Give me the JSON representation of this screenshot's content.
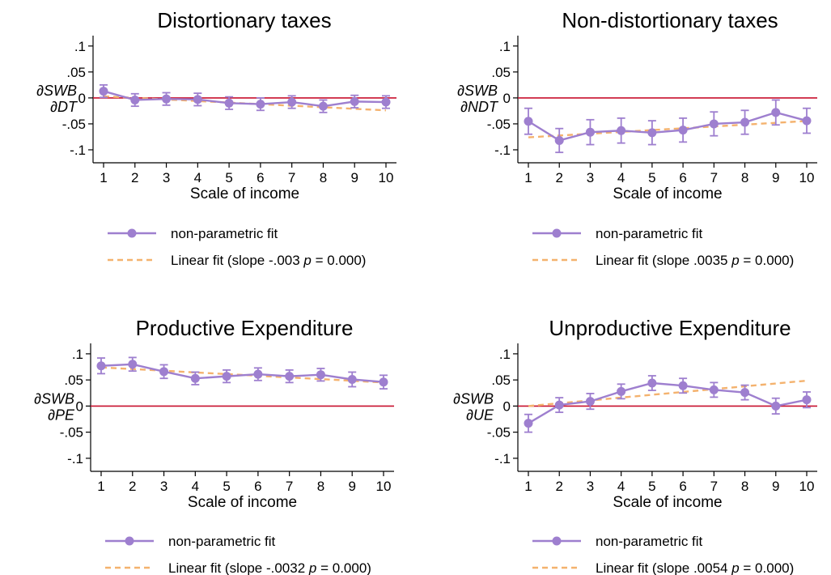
{
  "chart_data": [
    {
      "type": "line",
      "title": "Distortionary taxes",
      "xlabel": "Scale of income",
      "ylabel": {
        "numerator": "∂SWB",
        "denominator": "∂DT"
      },
      "x": [
        1,
        2,
        3,
        4,
        5,
        6,
        7,
        8,
        9,
        10
      ],
      "xticks": [
        "1",
        "2",
        "3",
        "4",
        "5",
        "6",
        "7",
        "8",
        "9",
        "10"
      ],
      "ylim": [
        -0.125,
        0.12
      ],
      "yticks": [
        0.1,
        0.05,
        0,
        -0.05,
        -0.1
      ],
      "ytick_labels": [
        ".1",
        ".05",
        "0",
        "-.05",
        "-.1"
      ],
      "reference_line": 0,
      "grid": false,
      "series": [
        {
          "name": "non-parametric fit",
          "style": "line-marker-errorbar",
          "color": "#9e7fcf",
          "values": [
            0.013,
            -0.004,
            -0.002,
            -0.003,
            -0.01,
            -0.012,
            -0.008,
            -0.016,
            -0.007,
            -0.008
          ],
          "ci_low": [
            0.001,
            -0.016,
            -0.014,
            -0.015,
            -0.022,
            -0.024,
            -0.02,
            -0.028,
            -0.019,
            -0.02
          ],
          "ci_high": [
            0.025,
            0.008,
            0.01,
            0.009,
            0.002,
            0.0,
            0.004,
            -0.004,
            0.005,
            0.004
          ]
        },
        {
          "name": "Linear fit (slope -.003",
          "style": "dashed",
          "color": "#f4b26e",
          "values": [
            0.003,
            0.0,
            -0.003,
            -0.006,
            -0.009,
            -0.012,
            -0.015,
            -0.018,
            -0.021,
            -0.024
          ]
        }
      ],
      "legend": {
        "placement": "bottom",
        "entries": [
          "non-parametric fit",
          "Linear fit (slope -.003"
        ],
        "p_label": "p",
        "p_value": " = 0.000)"
      }
    },
    {
      "type": "line",
      "title": "Non-distortionary taxes",
      "xlabel": "Scale of income",
      "ylabel": {
        "numerator": "∂SWB",
        "denominator": "∂NDT"
      },
      "x": [
        1,
        2,
        3,
        4,
        5,
        6,
        7,
        8,
        9,
        10
      ],
      "xticks": [
        "1",
        "2",
        "3",
        "4",
        "5",
        "6",
        "7",
        "8",
        "9",
        "10"
      ],
      "ylim": [
        -0.125,
        0.12
      ],
      "yticks": [
        0.1,
        0.05,
        0,
        -0.05,
        -0.1
      ],
      "ytick_labels": [
        ".1",
        ".05",
        "0",
        "-.05",
        "-.1"
      ],
      "reference_line": 0,
      "grid": false,
      "series": [
        {
          "name": "non-parametric fit",
          "style": "line-marker-errorbar",
          "color": "#9e7fcf",
          "values": [
            -0.045,
            -0.082,
            -0.066,
            -0.063,
            -0.067,
            -0.062,
            -0.05,
            -0.047,
            -0.028,
            -0.044
          ],
          "ci_low": [
            -0.07,
            -0.105,
            -0.09,
            -0.087,
            -0.09,
            -0.085,
            -0.073,
            -0.07,
            -0.052,
            -0.068
          ],
          "ci_high": [
            -0.02,
            -0.059,
            -0.042,
            -0.039,
            -0.044,
            -0.039,
            -0.027,
            -0.024,
            -0.004,
            -0.02
          ]
        },
        {
          "name": "Linear fit (slope .0035",
          "style": "dashed",
          "color": "#f4b26e",
          "values": [
            -0.076,
            -0.0725,
            -0.069,
            -0.0655,
            -0.062,
            -0.0585,
            -0.055,
            -0.0515,
            -0.048,
            -0.0445
          ]
        }
      ],
      "legend": {
        "placement": "bottom",
        "entries": [
          "non-parametric fit",
          "Linear fit (slope .0035"
        ],
        "p_label": "p",
        "p_value": " = 0.000)"
      }
    },
    {
      "type": "line",
      "title": "Productive Expenditure",
      "xlabel": "Scale of income",
      "ylabel": {
        "numerator": "∂SWB",
        "denominator": "∂PE"
      },
      "x": [
        1,
        2,
        3,
        4,
        5,
        6,
        7,
        8,
        9,
        10
      ],
      "xticks": [
        "1",
        "2",
        "3",
        "4",
        "5",
        "6",
        "7",
        "8",
        "9",
        "10"
      ],
      "ylim": [
        -0.125,
        0.12
      ],
      "yticks": [
        0.1,
        0.05,
        0,
        -0.05,
        -0.1
      ],
      "ytick_labels": [
        ".1",
        ".05",
        "0",
        "-.05",
        "-.1"
      ],
      "reference_line": 0,
      "grid": false,
      "series": [
        {
          "name": "non-parametric fit",
          "style": "line-marker-errorbar",
          "color": "#9e7fcf",
          "values": [
            0.077,
            0.08,
            0.066,
            0.053,
            0.057,
            0.061,
            0.057,
            0.06,
            0.051,
            0.046
          ],
          "ci_low": [
            0.062,
            0.067,
            0.053,
            0.041,
            0.045,
            0.049,
            0.045,
            0.048,
            0.037,
            0.033
          ],
          "ci_high": [
            0.092,
            0.093,
            0.079,
            0.065,
            0.069,
            0.073,
            0.069,
            0.072,
            0.065,
            0.059
          ]
        },
        {
          "name": "Linear fit (slope -.0032",
          "style": "dashed",
          "color": "#f4b26e",
          "values": [
            0.074,
            0.0708,
            0.0676,
            0.0644,
            0.0612,
            0.058,
            0.0548,
            0.0516,
            0.0484,
            0.0452
          ]
        }
      ],
      "legend": {
        "placement": "bottom",
        "entries": [
          "non-parametric fit",
          "Linear fit (slope -.0032"
        ],
        "p_label": "p",
        "p_value": " = 0.000)"
      }
    },
    {
      "type": "line",
      "title": "Unproductive Expenditure",
      "xlabel": "Scale of income",
      "ylabel": {
        "numerator": "∂SWB",
        "denominator": "∂UE"
      },
      "x": [
        1,
        2,
        3,
        4,
        5,
        6,
        7,
        8,
        9,
        10
      ],
      "xticks": [
        "1",
        "2",
        "3",
        "4",
        "5",
        "6",
        "7",
        "8",
        "9",
        "10"
      ],
      "ylim": [
        -0.125,
        0.12
      ],
      "yticks": [
        0.1,
        0.05,
        0,
        -0.05,
        -0.1
      ],
      "ytick_labels": [
        ".1",
        ".05",
        "0",
        "-.05",
        "-.1"
      ],
      "reference_line": 0,
      "grid": false,
      "series": [
        {
          "name": "non-parametric fit",
          "style": "line-marker-errorbar",
          "color": "#9e7fcf",
          "values": [
            -0.033,
            0.002,
            0.009,
            0.028,
            0.044,
            0.039,
            0.031,
            0.026,
            0.0,
            0.012
          ],
          "ci_low": [
            -0.05,
            -0.012,
            -0.006,
            0.014,
            0.03,
            0.025,
            0.017,
            0.012,
            -0.015,
            -0.003
          ],
          "ci_high": [
            -0.016,
            0.016,
            0.024,
            0.042,
            0.058,
            0.053,
            0.045,
            0.04,
            0.015,
            0.027
          ]
        },
        {
          "name": "Linear fit (slope .0054",
          "style": "dashed",
          "color": "#f4b26e",
          "values": [
            0.0,
            0.0054,
            0.0108,
            0.0162,
            0.0216,
            0.027,
            0.0324,
            0.0378,
            0.0432,
            0.0486
          ]
        }
      ],
      "legend": {
        "placement": "bottom",
        "entries": [
          "non-parametric fit",
          "Linear fit (slope .0054"
        ],
        "p_label": "p",
        "p_value": " = 0.000)"
      }
    }
  ],
  "colors": {
    "reference_line": "#c8102e",
    "nonparametric": "#9e7fcf",
    "linear_fit": "#f4b26e",
    "axis": "#000000"
  }
}
